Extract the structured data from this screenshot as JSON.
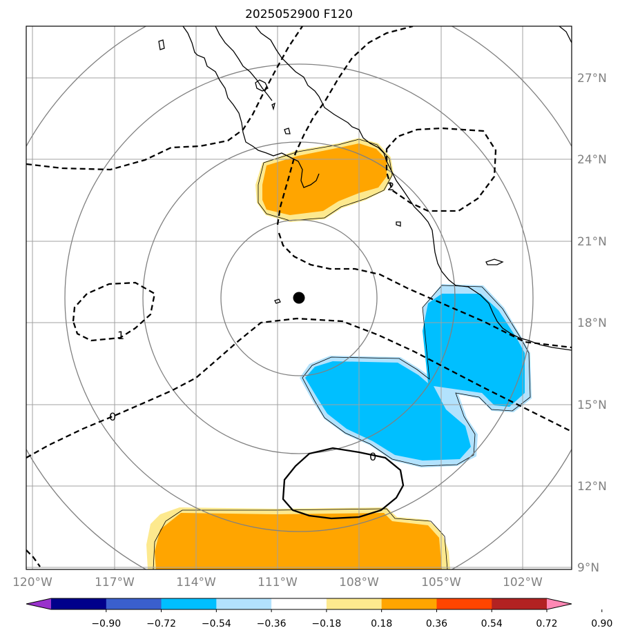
{
  "title": "2025052900 F120",
  "longitude_labels": [
    "120°W",
    "117°W",
    "114°W",
    "111°W",
    "108°W",
    "105°W",
    "102°W"
  ],
  "latitude_labels": [
    "27°N",
    "24°N",
    "21°N",
    "18°N",
    "15°N",
    "12°N",
    "9°N"
  ],
  "contour_labels": [
    "2",
    "1",
    "0",
    "0"
  ],
  "colorbar": {
    "tick_labels": [
      "−0.90",
      "−0.72",
      "−0.54",
      "−0.36",
      "−0.18",
      "0.18",
      "0.36",
      "0.54",
      "0.72",
      "0.90"
    ],
    "colors": [
      "#9932cc",
      "#00008b",
      "#3a5fcd",
      "#00bfff",
      "#b2e2fd",
      "#ffffff",
      "#fde98e",
      "#ffa500",
      "#ff4500",
      "#b22222",
      "#ff88b4"
    ]
  },
  "marker": "storm-center-dot"
}
